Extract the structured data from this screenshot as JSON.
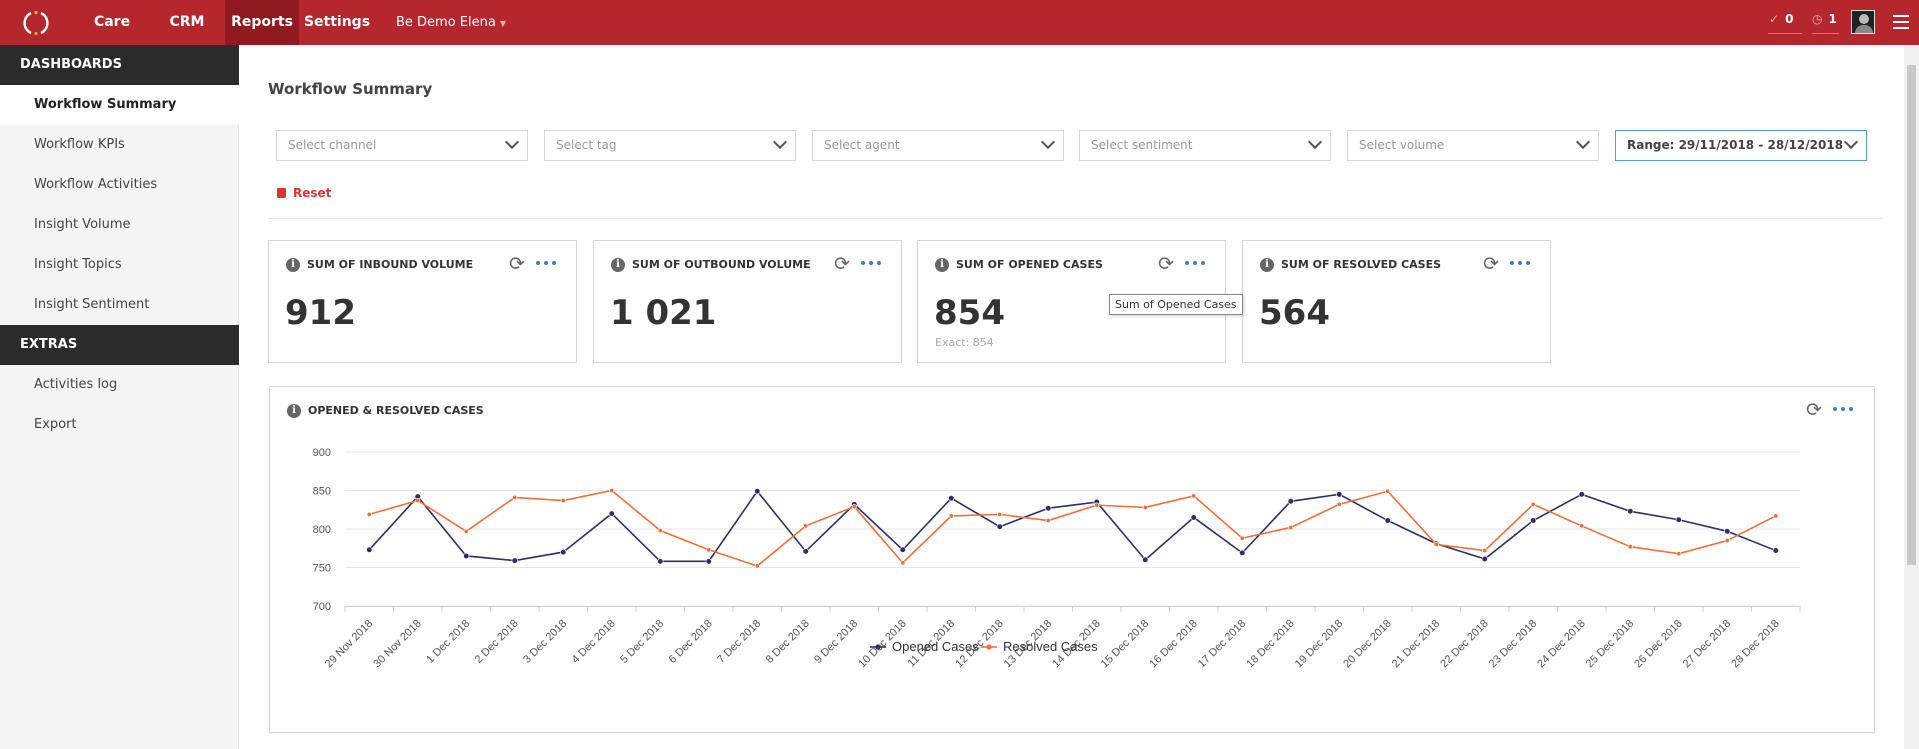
{
  "nav": {
    "items": [
      {
        "label": "Care"
      },
      {
        "label": "CRM"
      },
      {
        "label": "Reports"
      },
      {
        "label": "Settings"
      }
    ],
    "workspace": "Be Demo Elena",
    "tasks_count": "0",
    "alerts_count": "1"
  },
  "sidebar": {
    "dashboards_header": "DASHBOARDS",
    "dashboards": [
      {
        "label": "Workflow Summary"
      },
      {
        "label": "Workflow KPIs"
      },
      {
        "label": "Workflow Activities"
      },
      {
        "label": "Insight Volume"
      },
      {
        "label": "Insight Topics"
      },
      {
        "label": "Insight Sentiment"
      }
    ],
    "extras_header": "EXTRAS",
    "extras": [
      {
        "label": "Activities log"
      },
      {
        "label": "Export"
      }
    ]
  },
  "page": {
    "title": "Workflow Summary"
  },
  "filters": {
    "channel": "Select channel",
    "tag": "Select tag",
    "agent": "Select agent",
    "sentiment": "Select sentiment",
    "volume": "Select volume",
    "range": "Range: 29/11/2018 - 28/12/2018",
    "reset": "Reset"
  },
  "cards": [
    {
      "title": "SUM OF INBOUND VOLUME",
      "value": "912"
    },
    {
      "title": "SUM OF OUTBOUND VOLUME",
      "value": "1 021"
    },
    {
      "title": "SUM OF OPENED CASES",
      "value": "854",
      "exact": "Exact: 854"
    },
    {
      "title": "SUM OF RESOLVED CASES",
      "value": "564"
    }
  ],
  "tooltip": "Sum of Opened Cases",
  "colors": {
    "brand_red": "#b5272d",
    "opened": "#2e2e6b",
    "resolved": "#f26f3a",
    "accent_blue": "#3a7ec2"
  },
  "chart_data": {
    "type": "line",
    "title": "OPENED & RESOLVED CASES",
    "categories": [
      "29 Nov 2018",
      "30 Nov 2018",
      "1 Dec 2018",
      "2 Dec 2018",
      "3 Dec 2018",
      "4 Dec 2018",
      "5 Dec 2018",
      "6 Dec 2018",
      "7 Dec 2018",
      "8 Dec 2018",
      "9 Dec 2018",
      "10 Dec 2018",
      "11 Dec 2018",
      "12 Dec 2018",
      "13 Dec 2018",
      "14 Dec 2018",
      "15 Dec 2018",
      "16 Dec 2018",
      "17 Dec 2018",
      "18 Dec 2018",
      "19 Dec 2018",
      "20 Dec 2018",
      "21 Dec 2018",
      "22 Dec 2018",
      "23 Dec 2018",
      "24 Dec 2018",
      "25 Dec 2018",
      "26 Dec 2018",
      "27 Dec 2018",
      "28 Dec 2018"
    ],
    "series": [
      {
        "name": "Opened Cases",
        "color": "#2e2e6b",
        "values": [
          773,
          842,
          765,
          759,
          770,
          820,
          758,
          758,
          849,
          771,
          832,
          773,
          840,
          803,
          827,
          835,
          760,
          815,
          769,
          836,
          845,
          811,
          781,
          761,
          811,
          845,
          823,
          812,
          797,
          772
        ]
      },
      {
        "name": "Resolved Cases",
        "color": "#f26f3a",
        "values": [
          819,
          837,
          797,
          841,
          837,
          850,
          798,
          773,
          752,
          804,
          829,
          756,
          817,
          819,
          811,
          831,
          828,
          843,
          788,
          802,
          832,
          849,
          780,
          772,
          832,
          804,
          777,
          768,
          785,
          817
        ]
      }
    ],
    "ylim": [
      700,
      900
    ],
    "yticks": [
      700,
      750,
      800,
      850,
      900
    ],
    "grid": true,
    "legend": "bottom-center"
  }
}
